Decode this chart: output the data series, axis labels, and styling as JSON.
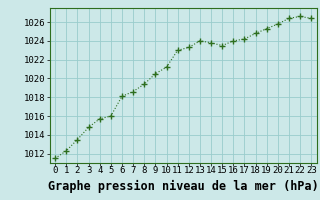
{
  "x": [
    0,
    1,
    2,
    3,
    4,
    5,
    6,
    7,
    8,
    9,
    10,
    11,
    12,
    13,
    14,
    15,
    16,
    17,
    18,
    19,
    20,
    21,
    22,
    23
  ],
  "y": [
    1011.5,
    1012.3,
    1013.5,
    1014.8,
    1015.7,
    1016.0,
    1018.1,
    1018.6,
    1019.4,
    1020.5,
    1021.2,
    1023.0,
    1023.3,
    1024.0,
    1023.8,
    1023.5,
    1024.0,
    1024.2,
    1024.8,
    1025.3,
    1025.8,
    1026.4,
    1026.6,
    1026.4
  ],
  "line_color": "#2d6e1e",
  "marker": "+",
  "bg_color": "#cce8e8",
  "grid_color": "#99cccc",
  "xlabel": "Graphe pression niveau de la mer (hPa)",
  "ylim": [
    1011,
    1027.5
  ],
  "xlim": [
    -0.5,
    23.5
  ],
  "yticks": [
    1012,
    1014,
    1016,
    1018,
    1020,
    1022,
    1024,
    1026
  ],
  "xticks": [
    0,
    1,
    2,
    3,
    4,
    5,
    6,
    7,
    8,
    9,
    10,
    11,
    12,
    13,
    14,
    15,
    16,
    17,
    18,
    19,
    20,
    21,
    22,
    23
  ],
  "tick_fontsize": 6.5,
  "xlabel_fontsize": 8.5,
  "line_width": 0.8,
  "marker_size": 4.5,
  "fig_width": 3.2,
  "fig_height": 2.0,
  "dpi": 100
}
